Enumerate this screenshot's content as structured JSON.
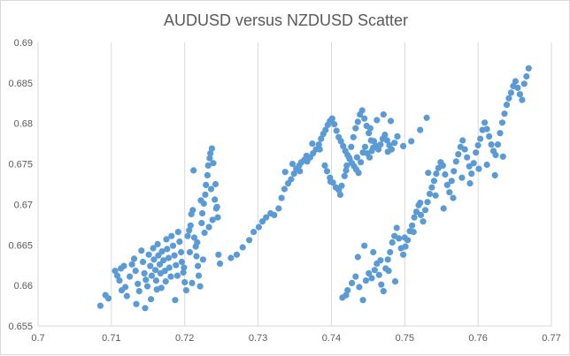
{
  "chart_data": {
    "type": "scatter",
    "title": "AUDUSD versus NZDUSD Scatter",
    "xlabel": "",
    "ylabel": "",
    "xlim": [
      0.7,
      0.77
    ],
    "ylim": [
      0.655,
      0.69
    ],
    "x_ticks": [
      "0.7",
      "0.71",
      "0.72",
      "0.73",
      "0.74",
      "0.75",
      "0.76",
      "0.77"
    ],
    "y_ticks": [
      "0.655",
      "0.66",
      "0.665",
      "0.67",
      "0.675",
      "0.68",
      "0.685",
      "0.69"
    ],
    "vertical_gridlines": true,
    "horizontal_gridlines": false,
    "legend": "none",
    "colors": {
      "marker": "#5b9bd5",
      "grid": "#d9d9d9",
      "text": "#595959",
      "frame": "#d9d9d9"
    },
    "series": [
      {
        "marker": "circle",
        "points": [
          [
            0.7085,
            0.6575
          ],
          [
            0.7092,
            0.6588
          ],
          [
            0.7096,
            0.6584
          ],
          [
            0.7105,
            0.6618
          ],
          [
            0.7108,
            0.6612
          ],
          [
            0.7111,
            0.6606
          ],
          [
            0.7113,
            0.6621
          ],
          [
            0.7117,
            0.6624
          ],
          [
            0.7119,
            0.6598
          ],
          [
            0.7121,
            0.6587
          ],
          [
            0.7125,
            0.6611
          ],
          [
            0.7128,
            0.6626
          ],
          [
            0.7131,
            0.6633
          ],
          [
            0.7133,
            0.6618
          ],
          [
            0.7136,
            0.6602
          ],
          [
            0.7138,
            0.6593
          ],
          [
            0.7141,
            0.6643
          ],
          [
            0.7143,
            0.6629
          ],
          [
            0.7145,
            0.6615
          ],
          [
            0.7147,
            0.6607
          ],
          [
            0.7149,
            0.6599
          ],
          [
            0.7151,
            0.6638
          ],
          [
            0.7153,
            0.6624
          ],
          [
            0.7155,
            0.6612
          ],
          [
            0.7157,
            0.6646
          ],
          [
            0.7158,
            0.6632
          ],
          [
            0.716,
            0.6619
          ],
          [
            0.7161,
            0.6606
          ],
          [
            0.7162,
            0.6595
          ],
          [
            0.7163,
            0.6651
          ],
          [
            0.7164,
            0.6637
          ],
          [
            0.7166,
            0.6626
          ],
          [
            0.7167,
            0.6615
          ],
          [
            0.7169,
            0.6642
          ],
          [
            0.7171,
            0.6631
          ],
          [
            0.7173,
            0.6618
          ],
          [
            0.7175,
            0.6657
          ],
          [
            0.7176,
            0.6645
          ],
          [
            0.7178,
            0.6634
          ],
          [
            0.7179,
            0.6622
          ],
          [
            0.7181,
            0.6611
          ],
          [
            0.7182,
            0.6661
          ],
          [
            0.7184,
            0.6649
          ],
          [
            0.7186,
            0.6637
          ],
          [
            0.7188,
            0.6625
          ],
          [
            0.719,
            0.6612
          ],
          [
            0.7191,
            0.6666
          ],
          [
            0.7193,
            0.6654
          ],
          [
            0.7195,
            0.6641
          ],
          [
            0.7196,
            0.6629
          ],
          [
            0.7198,
            0.6616
          ],
          [
            0.72,
            0.6604
          ],
          [
            0.7202,
            0.6594
          ],
          [
            0.7204,
            0.6661
          ],
          [
            0.7206,
            0.6668
          ],
          [
            0.7208,
            0.6674
          ],
          [
            0.7209,
            0.6688
          ],
          [
            0.7211,
            0.6693
          ],
          [
            0.7213,
            0.6659
          ],
          [
            0.7215,
            0.6648
          ],
          [
            0.7216,
            0.6636
          ],
          [
            0.7218,
            0.6624
          ],
          [
            0.7219,
            0.6612
          ],
          [
            0.7221,
            0.6599
          ],
          [
            0.7223,
            0.6677
          ],
          [
            0.7224,
            0.6689
          ],
          [
            0.7226,
            0.6701
          ],
          [
            0.7228,
            0.6712
          ],
          [
            0.7229,
            0.6724
          ],
          [
            0.7231,
            0.6736
          ],
          [
            0.7232,
            0.6748
          ],
          [
            0.7234,
            0.6757
          ],
          [
            0.7235,
            0.6763
          ],
          [
            0.7237,
            0.6769
          ],
          [
            0.7239,
            0.6751
          ],
          [
            0.7241,
            0.6706
          ],
          [
            0.7243,
            0.6695
          ],
          [
            0.7245,
            0.6684
          ],
          [
            0.7246,
            0.6638
          ],
          [
            0.7248,
            0.6627
          ],
          [
            0.7114,
            0.6594
          ],
          [
            0.7134,
            0.6577
          ],
          [
            0.7146,
            0.6572
          ],
          [
            0.7154,
            0.6583
          ],
          [
            0.7168,
            0.6597
          ],
          [
            0.7174,
            0.6605
          ],
          [
            0.7187,
            0.6582
          ],
          [
            0.7199,
            0.6622
          ],
          [
            0.7207,
            0.6641
          ],
          [
            0.7217,
            0.6653
          ],
          [
            0.7227,
            0.6665
          ],
          [
            0.7233,
            0.6672
          ],
          [
            0.7238,
            0.6681
          ],
          [
            0.7244,
            0.6697
          ],
          [
            0.7212,
            0.6742
          ],
          [
            0.7222,
            0.6705
          ],
          [
            0.7236,
            0.6719
          ],
          [
            0.7242,
            0.6725
          ],
          [
            0.721,
            0.6603
          ],
          [
            0.7225,
            0.6632
          ],
          [
            0.7263,
            0.6634
          ],
          [
            0.7271,
            0.6638
          ],
          [
            0.7279,
            0.6647
          ],
          [
            0.7288,
            0.6656
          ],
          [
            0.7294,
            0.6666
          ],
          [
            0.7301,
            0.6672
          ],
          [
            0.7306,
            0.6679
          ],
          [
            0.7311,
            0.6684
          ],
          [
            0.7317,
            0.6689
          ],
          [
            0.7322,
            0.6687
          ],
          [
            0.7328,
            0.6695
          ],
          [
            0.7332,
            0.6708
          ],
          [
            0.7336,
            0.6719
          ],
          [
            0.7341,
            0.6726
          ],
          [
            0.7345,
            0.6731
          ],
          [
            0.7349,
            0.6738
          ],
          [
            0.7352,
            0.6744
          ],
          [
            0.7356,
            0.6748
          ],
          [
            0.7359,
            0.6752
          ],
          [
            0.7363,
            0.6755
          ],
          [
            0.7367,
            0.6753
          ],
          [
            0.7371,
            0.6758
          ],
          [
            0.7375,
            0.6763
          ],
          [
            0.7379,
            0.6768
          ],
          [
            0.7383,
            0.6774
          ],
          [
            0.7386,
            0.6781
          ],
          [
            0.7389,
            0.6787
          ],
          [
            0.7392,
            0.6792
          ],
          [
            0.7395,
            0.6798
          ],
          [
            0.7398,
            0.6803
          ],
          [
            0.7401,
            0.6806
          ],
          [
            0.7404,
            0.6799
          ],
          [
            0.7407,
            0.6791
          ],
          [
            0.741,
            0.6783
          ],
          [
            0.7413,
            0.6778
          ],
          [
            0.7416,
            0.6772
          ],
          [
            0.7419,
            0.6766
          ],
          [
            0.7422,
            0.6761
          ],
          [
            0.7425,
            0.6756
          ],
          [
            0.7428,
            0.6751
          ],
          [
            0.7431,
            0.6747
          ],
          [
            0.7434,
            0.6743
          ],
          [
            0.7437,
            0.6739
          ],
          [
            0.744,
            0.6752
          ],
          [
            0.7443,
            0.6764
          ],
          [
            0.7446,
            0.6771
          ],
          [
            0.7449,
            0.6763
          ],
          [
            0.7452,
            0.6758
          ],
          [
            0.7455,
            0.6766
          ],
          [
            0.7458,
            0.6778
          ],
          [
            0.7461,
            0.6772
          ],
          [
            0.7464,
            0.6768
          ],
          [
            0.7467,
            0.6774
          ],
          [
            0.747,
            0.6781
          ],
          [
            0.7473,
            0.6786
          ],
          [
            0.7476,
            0.6779
          ],
          [
            0.7479,
            0.6773
          ],
          [
            0.7482,
            0.6768
          ],
          [
            0.7486,
            0.6776
          ],
          [
            0.749,
            0.6784
          ],
          [
            0.7394,
            0.6741
          ],
          [
            0.7398,
            0.6733
          ],
          [
            0.7402,
            0.6727
          ],
          [
            0.7406,
            0.6721
          ],
          [
            0.741,
            0.6718
          ],
          [
            0.7414,
            0.6723
          ],
          [
            0.7418,
            0.6735
          ],
          [
            0.7421,
            0.6748
          ],
          [
            0.7424,
            0.6758
          ],
          [
            0.7427,
            0.6771
          ],
          [
            0.743,
            0.6783
          ],
          [
            0.7433,
            0.6794
          ],
          [
            0.7436,
            0.6802
          ],
          [
            0.7439,
            0.6811
          ],
          [
            0.7442,
            0.6816
          ],
          [
            0.7445,
            0.6806
          ],
          [
            0.7448,
            0.6797
          ],
          [
            0.7451,
            0.6788
          ],
          [
            0.7454,
            0.6779
          ],
          [
            0.7457,
            0.677
          ],
          [
            0.7337,
            0.674
          ],
          [
            0.7347,
            0.675
          ],
          [
            0.7357,
            0.6741
          ],
          [
            0.7366,
            0.676
          ],
          [
            0.7374,
            0.6775
          ],
          [
            0.7384,
            0.6768
          ],
          [
            0.7391,
            0.6748
          ],
          [
            0.7399,
            0.6728
          ],
          [
            0.7412,
            0.6712
          ],
          [
            0.742,
            0.6742
          ],
          [
            0.7435,
            0.6758
          ],
          [
            0.7453,
            0.6794
          ],
          [
            0.7462,
            0.6804
          ],
          [
            0.7471,
            0.6811
          ],
          [
            0.7481,
            0.6803
          ],
          [
            0.7498,
            0.6772
          ],
          [
            0.7509,
            0.6778
          ],
          [
            0.7521,
            0.6792
          ],
          [
            0.753,
            0.6807
          ],
          [
            0.7477,
            0.6765
          ],
          [
            0.7415,
            0.6585
          ],
          [
            0.7422,
            0.6594
          ],
          [
            0.7428,
            0.6603
          ],
          [
            0.7433,
            0.6611
          ],
          [
            0.7438,
            0.6598
          ],
          [
            0.7443,
            0.6582
          ],
          [
            0.7447,
            0.6606
          ],
          [
            0.7451,
            0.6615
          ],
          [
            0.7455,
            0.6609
          ],
          [
            0.7459,
            0.6619
          ],
          [
            0.7462,
            0.6627
          ],
          [
            0.7465,
            0.6613
          ],
          [
            0.7468,
            0.6601
          ],
          [
            0.7471,
            0.6593
          ],
          [
            0.7474,
            0.6621
          ],
          [
            0.7477,
            0.6632
          ],
          [
            0.748,
            0.6641
          ],
          [
            0.7483,
            0.6653
          ],
          [
            0.7486,
            0.6661
          ],
          [
            0.7489,
            0.6671
          ],
          [
            0.7492,
            0.6658
          ],
          [
            0.7495,
            0.6646
          ],
          [
            0.7498,
            0.6638
          ],
          [
            0.7501,
            0.6648
          ],
          [
            0.7504,
            0.6656
          ],
          [
            0.7507,
            0.6667
          ],
          [
            0.751,
            0.6674
          ],
          [
            0.7513,
            0.6684
          ],
          [
            0.7516,
            0.6691
          ],
          [
            0.7519,
            0.6699
          ],
          [
            0.7522,
            0.6687
          ],
          [
            0.7525,
            0.6679
          ],
          [
            0.7528,
            0.6693
          ],
          [
            0.7531,
            0.6703
          ],
          [
            0.7534,
            0.6713
          ],
          [
            0.7537,
            0.6721
          ],
          [
            0.754,
            0.6729
          ],
          [
            0.7543,
            0.6738
          ],
          [
            0.7546,
            0.6745
          ],
          [
            0.7549,
            0.6752
          ],
          [
            0.7552,
            0.6748
          ],
          [
            0.7555,
            0.6737
          ],
          [
            0.7558,
            0.6724
          ],
          [
            0.7561,
            0.6715
          ],
          [
            0.7564,
            0.6729
          ],
          [
            0.7567,
            0.6741
          ],
          [
            0.757,
            0.6753
          ],
          [
            0.7573,
            0.6762
          ],
          [
            0.7576,
            0.6771
          ],
          [
            0.7579,
            0.6779
          ],
          [
            0.7582,
            0.6768
          ],
          [
            0.7585,
            0.6758
          ],
          [
            0.7588,
            0.6747
          ],
          [
            0.7591,
            0.6738
          ],
          [
            0.7594,
            0.6751
          ],
          [
            0.7597,
            0.6764
          ],
          [
            0.76,
            0.6773
          ],
          [
            0.7603,
            0.6781
          ],
          [
            0.7606,
            0.6792
          ],
          [
            0.7609,
            0.6801
          ],
          [
            0.7612,
            0.6793
          ],
          [
            0.7615,
            0.6784
          ],
          [
            0.7618,
            0.6774
          ],
          [
            0.7621,
            0.6766
          ],
          [
            0.7624,
            0.6761
          ],
          [
            0.7627,
            0.6774
          ],
          [
            0.763,
            0.6788
          ],
          [
            0.7633,
            0.6801
          ],
          [
            0.7636,
            0.6812
          ],
          [
            0.7639,
            0.6823
          ],
          [
            0.7642,
            0.6831
          ],
          [
            0.7645,
            0.6838
          ],
          [
            0.7648,
            0.6846
          ],
          [
            0.7651,
            0.6852
          ],
          [
            0.7654,
            0.6844
          ],
          [
            0.7657,
            0.6836
          ],
          [
            0.766,
            0.6829
          ],
          [
            0.7663,
            0.6849
          ],
          [
            0.7666,
            0.6858
          ],
          [
            0.7669,
            0.6868
          ],
          [
            0.742,
            0.6588
          ],
          [
            0.7436,
            0.6635
          ],
          [
            0.7445,
            0.6649
          ],
          [
            0.7457,
            0.6641
          ],
          [
            0.7467,
            0.6631
          ],
          [
            0.7478,
            0.6618
          ],
          [
            0.7487,
            0.6605
          ],
          [
            0.75,
            0.6659
          ],
          [
            0.7512,
            0.6666
          ],
          [
            0.7521,
            0.6702
          ],
          [
            0.7532,
            0.6739
          ],
          [
            0.7542,
            0.6711
          ],
          [
            0.7553,
            0.6695
          ],
          [
            0.7566,
            0.6708
          ],
          [
            0.7578,
            0.6733
          ],
          [
            0.7589,
            0.6726
          ],
          [
            0.7601,
            0.6744
          ],
          [
            0.7612,
            0.6749
          ],
          [
            0.7623,
            0.6736
          ],
          [
            0.7634,
            0.6759
          ]
        ]
      }
    ]
  }
}
